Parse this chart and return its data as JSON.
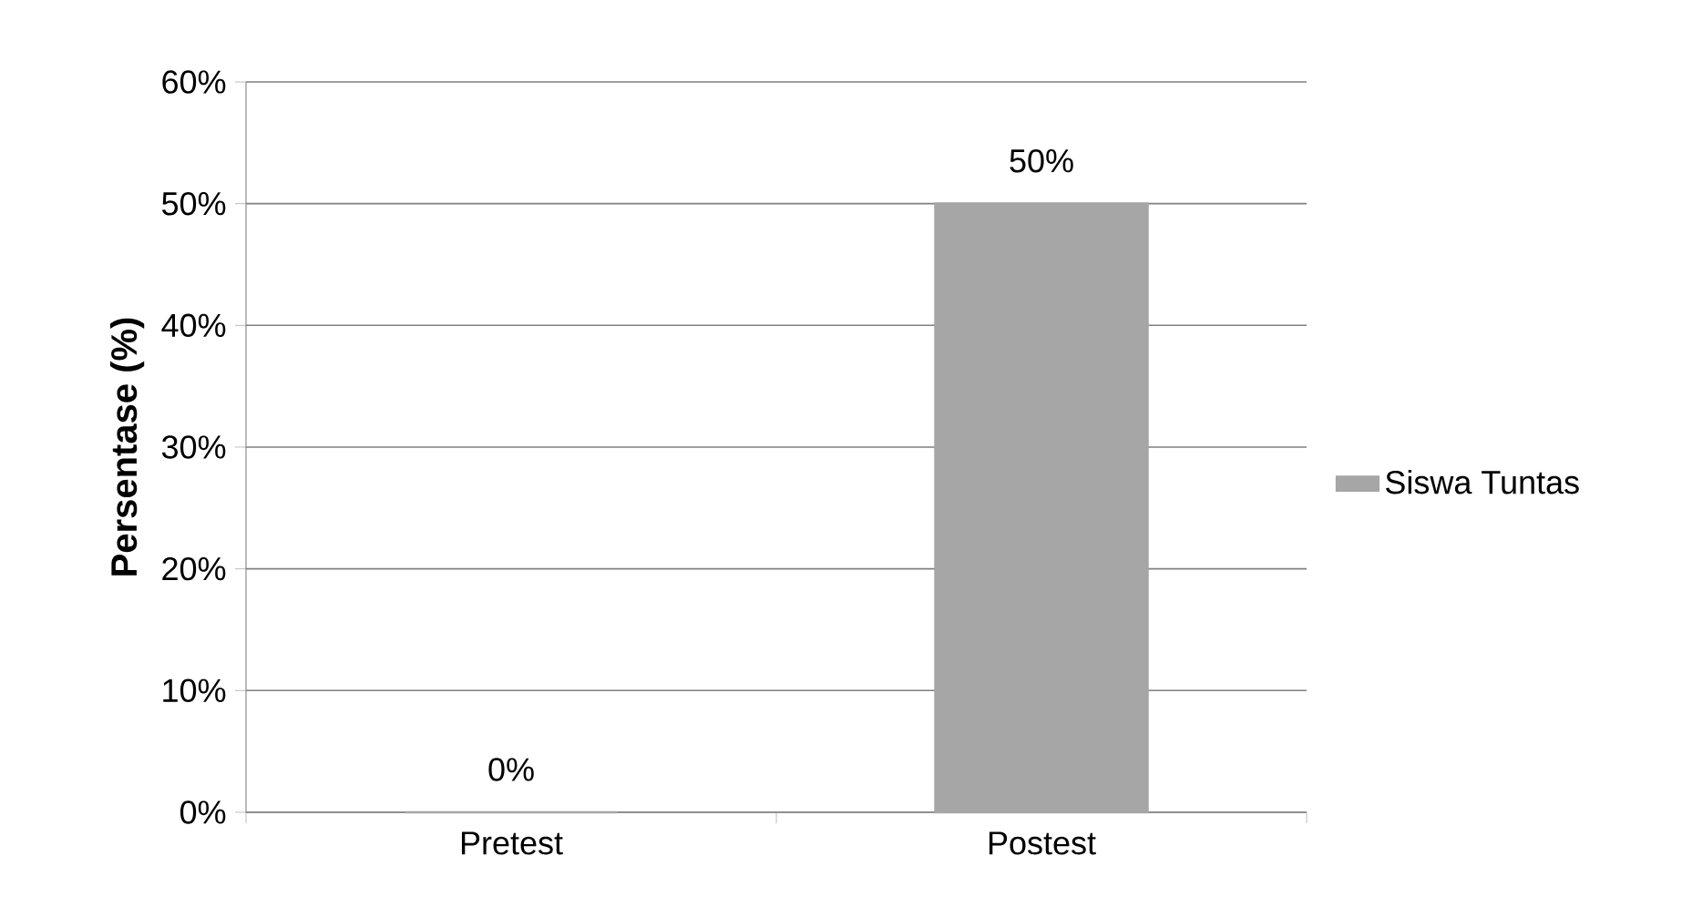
{
  "chart_data": {
    "type": "bar",
    "ylabel": "Persentase (%)",
    "categories": [
      "Pretest",
      "Postest"
    ],
    "series": [
      {
        "name": "Siswa Tuntas",
        "color": "#a6a6a6",
        "values": [
          0,
          50
        ],
        "value_labels": [
          "0%",
          "50%"
        ]
      }
    ],
    "ylim": [
      0,
      60
    ],
    "yticks": [
      {
        "value": 0,
        "label": "0%"
      },
      {
        "value": 10,
        "label": "10%"
      },
      {
        "value": 20,
        "label": "20%"
      },
      {
        "value": 30,
        "label": "30%"
      },
      {
        "value": 40,
        "label": "40%"
      },
      {
        "value": 50,
        "label": "50%"
      },
      {
        "value": 60,
        "label": "60%"
      }
    ],
    "grid": "y",
    "legend": "right"
  }
}
